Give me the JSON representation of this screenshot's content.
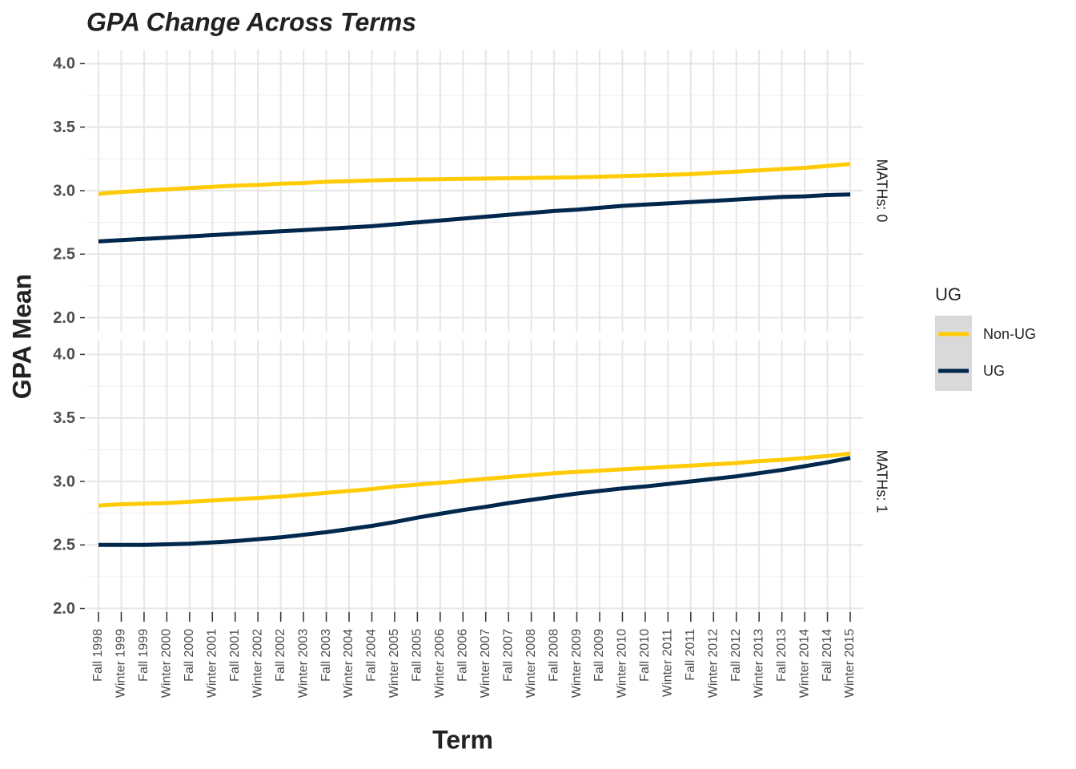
{
  "chart_data": {
    "type": "line",
    "title": "GPA Change Across Terms",
    "x_label": "Term",
    "y_label": "GPA Mean",
    "legend_title": "UG",
    "categories": [
      "Fall 1998",
      "Winter 1999",
      "Fall 1999",
      "Winter 2000",
      "Fall 2000",
      "Winter 2001",
      "Fall 2001",
      "Winter 2002",
      "Fall 2002",
      "Winter 2003",
      "Fall 2003",
      "Winter 2004",
      "Fall 2004",
      "Winter 2005",
      "Fall 2005",
      "Winter 2006",
      "Fall 2006",
      "Winter 2007",
      "Fall 2007",
      "Winter 2008",
      "Fall 2008",
      "Winter 2009",
      "Fall 2009",
      "Winter 2010",
      "Fall 2010",
      "Winter 2011",
      "Fall 2011",
      "Winter 2012",
      "Fall 2012",
      "Winter 2013",
      "Fall 2013",
      "Winter 2014",
      "Fall 2014",
      "Winter 2015"
    ],
    "legend": [
      {
        "name": "Non-UG",
        "color": "#FFCB05"
      },
      {
        "name": "UG",
        "color": "#00274C"
      }
    ],
    "ylim": [
      1.89,
      4.11
    ],
    "yticks": [
      {
        "value": 2,
        "label": "2.0"
      },
      2.5,
      {
        "value": 3,
        "label": "3.0"
      },
      3.5,
      {
        "value": 4,
        "label": "4.0"
      }
    ],
    "grid": true,
    "facets": [
      {
        "label": "MATHs: 0",
        "series": [
          {
            "values": [
              2.975,
              2.99,
              3.0,
              3.01,
              3.02,
              3.03,
              3.04,
              3.045,
              3.055,
              3.06,
              3.07,
              3.075,
              3.08,
              3.085,
              3.088,
              3.09,
              3.093,
              3.095,
              3.098,
              3.1,
              3.103,
              3.105,
              3.11,
              3.115,
              3.12,
              3.125,
              3.13,
              3.14,
              3.15,
              3.16,
              3.17,
              3.18,
              3.195,
              3.21
            ]
          },
          {
            "values": [
              2.6,
              2.61,
              2.62,
              2.63,
              2.64,
              2.65,
              2.66,
              2.67,
              2.68,
              2.69,
              2.7,
              2.71,
              2.72,
              2.735,
              2.75,
              2.765,
              2.78,
              2.795,
              2.81,
              2.825,
              2.84,
              2.85,
              2.865,
              2.88,
              2.89,
              2.9,
              2.91,
              2.92,
              2.93,
              2.94,
              2.95,
              2.955,
              2.965,
              2.97
            ]
          }
        ]
      },
      {
        "label": "MATHs: 1",
        "series": [
          {
            "values": [
              2.81,
              2.82,
              2.825,
              2.83,
              2.84,
              2.85,
              2.86,
              2.87,
              2.88,
              2.895,
              2.91,
              2.925,
              2.94,
              2.96,
              2.975,
              2.99,
              3.005,
              3.02,
              3.035,
              3.05,
              3.065,
              3.075,
              3.085,
              3.095,
              3.105,
              3.115,
              3.125,
              3.135,
              3.145,
              3.16,
              3.17,
              3.185,
              3.2,
              3.22
            ]
          },
          {
            "values": [
              2.5,
              2.5,
              2.5,
              2.505,
              2.51,
              2.52,
              2.53,
              2.545,
              2.56,
              2.58,
              2.6,
              2.625,
              2.65,
              2.68,
              2.715,
              2.745,
              2.775,
              2.8,
              2.83,
              2.855,
              2.88,
              2.905,
              2.925,
              2.945,
              2.96,
              2.98,
              3.0,
              3.02,
              3.04,
              3.065,
              3.09,
              3.12,
              3.15,
              3.185
            ]
          }
        ]
      }
    ]
  }
}
